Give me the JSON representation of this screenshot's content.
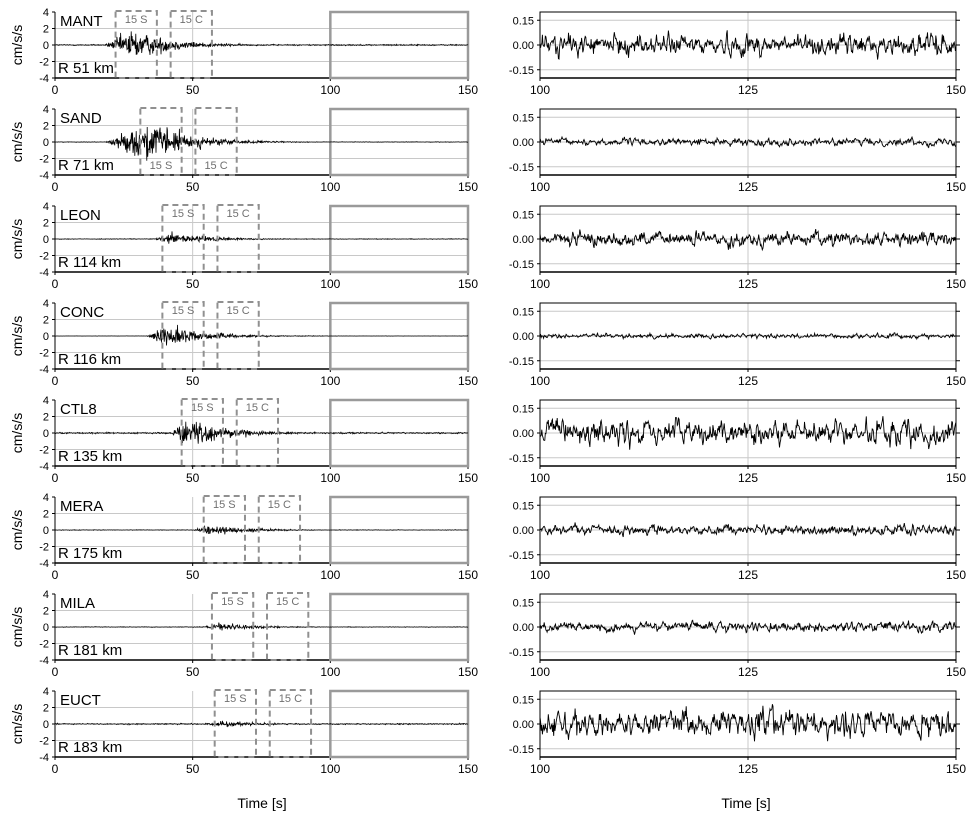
{
  "chart_data": {
    "type": "line",
    "layout": "8 stations x 2 columns",
    "xlabel_left": "Time [s]",
    "xlabel_right": "Time [s]",
    "ylabel": "cm/s/s",
    "left_panel": {
      "xlim": [
        0,
        150
      ],
      "ylim": [
        -4,
        4
      ],
      "xticks": [
        "0",
        "50",
        "100",
        "150"
      ],
      "yticks": [
        "4",
        "2",
        "0",
        "-2",
        "-4"
      ],
      "grid": true,
      "highlight_box_x": [
        100,
        150
      ]
    },
    "right_panel": {
      "xlim": [
        100,
        150
      ],
      "ylim": [
        -0.2,
        0.2
      ],
      "xticks": [
        "100",
        "125",
        "150"
      ],
      "yticks": [
        "0.15",
        "0.00",
        "-0.15"
      ],
      "grid": true
    },
    "stations": [
      {
        "name": "MANT",
        "distance": "R 51 km",
        "window_S": [
          22,
          37
        ],
        "window_C": [
          42,
          57
        ],
        "label_S": "15 S",
        "label_C": "15 C",
        "onset": 18,
        "peak_time": 28,
        "peak_amp": 3.2,
        "noise_amp": 0.12,
        "window_labels": "top"
      },
      {
        "name": "SAND",
        "distance": "R 71 km",
        "window_S": [
          31,
          46
        ],
        "window_C": [
          51,
          66
        ],
        "label_S": "15 S",
        "label_C": "15 C",
        "onset": 18,
        "peak_time": 35,
        "peak_amp": 4.0,
        "noise_amp": 0.05,
        "window_labels": "bottom"
      },
      {
        "name": "LEON",
        "distance": "R 114 km",
        "window_S": [
          39,
          54
        ],
        "window_C": [
          59,
          74
        ],
        "label_S": "15 S",
        "label_C": "15 C",
        "onset": 36,
        "peak_time": 43,
        "peak_amp": 1.3,
        "noise_amp": 0.06,
        "window_labels": "top"
      },
      {
        "name": "CONC",
        "distance": "R 116 km",
        "window_S": [
          39,
          54
        ],
        "window_C": [
          59,
          74
        ],
        "label_S": "15 S",
        "label_C": "15 C",
        "onset": 33,
        "peak_time": 41,
        "peak_amp": 2.1,
        "noise_amp": 0.02,
        "window_labels": "top"
      },
      {
        "name": "CTL8",
        "distance": "R 135 km",
        "window_S": [
          46,
          61
        ],
        "window_C": [
          66,
          81
        ],
        "label_S": "15 S",
        "label_C": "15 C",
        "onset": 42,
        "peak_time": 48,
        "peak_amp": 3.0,
        "noise_amp": 0.14,
        "window_labels": "top"
      },
      {
        "name": "MERA",
        "distance": "R 175 km",
        "window_S": [
          54,
          69
        ],
        "window_C": [
          74,
          89
        ],
        "label_S": "15 S",
        "label_C": "15 C",
        "onset": 50,
        "peak_time": 56,
        "peak_amp": 1.1,
        "noise_amp": 0.05,
        "window_labels": "top"
      },
      {
        "name": "MILA",
        "distance": "R 181 km",
        "window_S": [
          57,
          72
        ],
        "window_C": [
          77,
          92
        ],
        "label_S": "15 S",
        "label_C": "15 C",
        "onset": 54,
        "peak_time": 59,
        "peak_amp": 0.9,
        "noise_amp": 0.05,
        "window_labels": "top"
      },
      {
        "name": "EUCT",
        "distance": "R 183 km",
        "window_S": [
          58,
          73
        ],
        "window_C": [
          78,
          93
        ],
        "label_S": "15 S",
        "label_C": "15 C",
        "onset": 55,
        "peak_time": 60,
        "peak_amp": 0.7,
        "noise_amp": 0.12,
        "window_labels": "top"
      }
    ],
    "right_noise_amp": [
      0.09,
      0.03,
      0.06,
      0.02,
      0.11,
      0.04,
      0.04,
      0.11
    ]
  }
}
